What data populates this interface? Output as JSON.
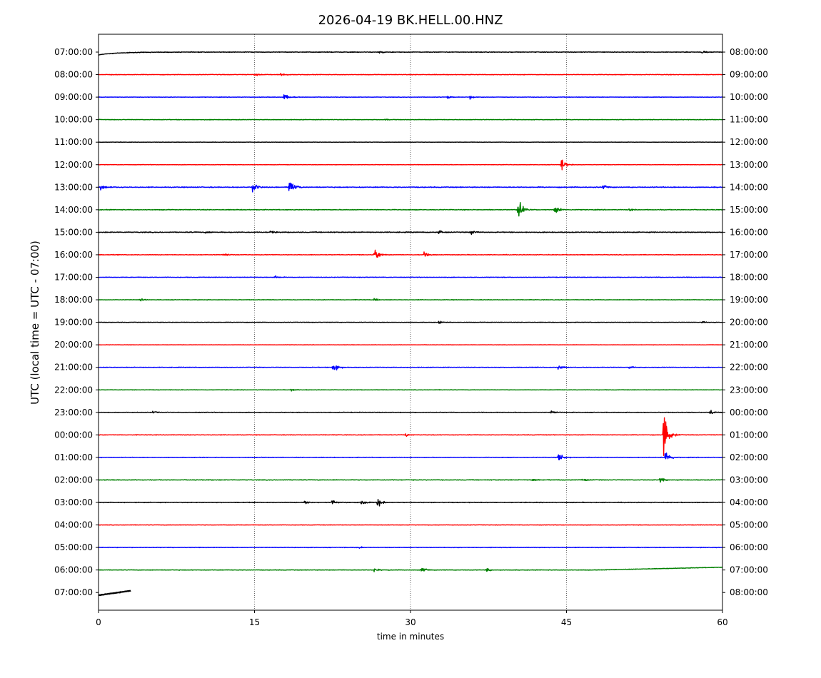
{
  "chart_data": {
    "type": "line",
    "title": "2026-04-19 BK.HELL.00.HNZ",
    "xlabel": "time in minutes",
    "ylabel": "UTC (local time = UTC - 07:00)",
    "xlim": [
      0,
      60
    ],
    "x_ticks": [
      0,
      15,
      30,
      45,
      60
    ],
    "x_tick_labels": [
      "0",
      "15",
      "30",
      "45",
      "60"
    ],
    "grid": "vertical dotted at 15, 30, 45",
    "trace_colors": [
      "#000000",
      "#ff0000",
      "#0000ff",
      "#008000"
    ],
    "left_tick_labels": [
      "07:00:00",
      "08:00:00",
      "09:00:00",
      "10:00:00",
      "11:00:00",
      "12:00:00",
      "13:00:00",
      "14:00:00",
      "15:00:00",
      "16:00:00",
      "17:00:00",
      "18:00:00",
      "19:00:00",
      "20:00:00",
      "21:00:00",
      "22:00:00",
      "23:00:00",
      "00:00:00",
      "01:00:00",
      "02:00:00",
      "03:00:00",
      "04:00:00",
      "05:00:00",
      "06:00:00",
      "07:00:00"
    ],
    "right_tick_labels": [
      "08:00:00",
      "09:00:00",
      "10:00:00",
      "11:00:00",
      "12:00:00",
      "13:00:00",
      "14:00:00",
      "15:00:00",
      "16:00:00",
      "17:00:00",
      "18:00:00",
      "19:00:00",
      "20:00:00",
      "21:00:00",
      "22:00:00",
      "23:00:00",
      "00:00:00",
      "01:00:00",
      "02:00:00",
      "03:00:00",
      "04:00:00",
      "05:00:00",
      "06:00:00",
      "07:00:00",
      "08:00:00"
    ],
    "series": [
      {
        "hour": "07:00:00",
        "end_minute": 60,
        "drift": "start",
        "noise": 0.35,
        "events": [
          {
            "t": 27,
            "amp": 0.2
          },
          {
            "t": 58,
            "amp": 0.2
          }
        ]
      },
      {
        "hour": "08:00:00",
        "end_minute": 60,
        "noise": 0.3,
        "events": [
          {
            "t": 15,
            "amp": 0.3
          },
          {
            "t": 17.5,
            "amp": 0.3
          }
        ]
      },
      {
        "hour": "09:00:00",
        "end_minute": 60,
        "noise": 0.25,
        "events": [
          {
            "t": 17.8,
            "amp": 0.55
          },
          {
            "t": 33.5,
            "amp": 0.3
          },
          {
            "t": 35.7,
            "amp": 0.3
          }
        ]
      },
      {
        "hour": "10:00:00",
        "end_minute": 60,
        "noise": 0.3,
        "events": [
          {
            "t": 27.5,
            "amp": 0.2
          }
        ]
      },
      {
        "hour": "11:00:00",
        "end_minute": 60,
        "noise": 0.2,
        "events": []
      },
      {
        "hour": "12:00:00",
        "end_minute": 60,
        "noise": 0.25,
        "events": [
          {
            "t": 44.5,
            "amp": 0.9
          }
        ]
      },
      {
        "hour": "13:00:00",
        "end_minute": 60,
        "noise": 0.45,
        "events": [
          {
            "t": 0.2,
            "amp": 0.45
          },
          {
            "t": 14.8,
            "amp": 0.75
          },
          {
            "t": 18.3,
            "amp": 1.6
          },
          {
            "t": 48.5,
            "amp": 0.3
          }
        ]
      },
      {
        "hour": "14:00:00",
        "end_minute": 60,
        "noise": 0.4,
        "events": [
          {
            "t": 40.3,
            "amp": 1.9
          },
          {
            "t": 43.8,
            "amp": 0.7
          },
          {
            "t": 51,
            "amp": 0.25
          }
        ]
      },
      {
        "hour": "15:00:00",
        "end_minute": 60,
        "noise": 0.45,
        "events": [
          {
            "t": 10.3,
            "amp": 0.3
          },
          {
            "t": 16.5,
            "amp": 0.3
          },
          {
            "t": 32.7,
            "amp": 0.35
          },
          {
            "t": 35.8,
            "amp": 0.35
          }
        ]
      },
      {
        "hour": "16:00:00",
        "end_minute": 60,
        "noise": 0.35,
        "events": [
          {
            "t": 12,
            "amp": 0.35
          },
          {
            "t": 26.5,
            "amp": 0.9
          },
          {
            "t": 31.3,
            "amp": 0.4
          }
        ]
      },
      {
        "hour": "17:00:00",
        "end_minute": 60,
        "noise": 0.3,
        "events": [
          {
            "t": 16.9,
            "amp": 0.25
          }
        ]
      },
      {
        "hour": "18:00:00",
        "end_minute": 60,
        "noise": 0.3,
        "events": [
          {
            "t": 4,
            "amp": 0.2
          },
          {
            "t": 26.5,
            "amp": 0.2
          }
        ]
      },
      {
        "hour": "19:00:00",
        "end_minute": 60,
        "noise": 0.25,
        "events": [
          {
            "t": 32.7,
            "amp": 0.2
          },
          {
            "t": 58,
            "amp": 0.15
          }
        ]
      },
      {
        "hour": "20:00:00",
        "end_minute": 60,
        "noise": 0.2,
        "events": []
      },
      {
        "hour": "21:00:00",
        "end_minute": 60,
        "noise": 0.3,
        "events": [
          {
            "t": 22.5,
            "amp": 1.1
          },
          {
            "t": 44.2,
            "amp": 0.35
          },
          {
            "t": 51,
            "amp": 0.2
          }
        ]
      },
      {
        "hour": "22:00:00",
        "end_minute": 60,
        "noise": 0.25,
        "events": [
          {
            "t": 18.5,
            "amp": 0.2
          }
        ]
      },
      {
        "hour": "23:00:00",
        "end_minute": 60,
        "noise": 0.3,
        "events": [
          {
            "t": 5.2,
            "amp": 0.2
          },
          {
            "t": 43.5,
            "amp": 0.25
          },
          {
            "t": 58.8,
            "amp": 0.45
          }
        ]
      },
      {
        "hour": "00:00:00",
        "end_minute": 60,
        "noise": 0.3,
        "events": [
          {
            "t": 29.5,
            "amp": 0.25
          },
          {
            "t": 54.3,
            "amp": 3.2
          }
        ]
      },
      {
        "hour": "01:00:00",
        "end_minute": 60,
        "noise": 0.3,
        "events": [
          {
            "t": 44.2,
            "amp": 1.0
          },
          {
            "t": 54.5,
            "amp": 1.1
          }
        ]
      },
      {
        "hour": "02:00:00",
        "end_minute": 60,
        "noise": 0.35,
        "events": [
          {
            "t": 41.7,
            "amp": 0.25
          },
          {
            "t": 46.5,
            "amp": 0.25
          },
          {
            "t": 54,
            "amp": 0.45
          }
        ]
      },
      {
        "hour": "03:00:00",
        "end_minute": 60,
        "noise": 0.35,
        "events": [
          {
            "t": 19.8,
            "amp": 0.4
          },
          {
            "t": 22.4,
            "amp": 0.5
          },
          {
            "t": 25.2,
            "amp": 0.5
          },
          {
            "t": 26.8,
            "amp": 0.8
          }
        ]
      },
      {
        "hour": "04:00:00",
        "end_minute": 60,
        "noise": 0.25,
        "events": []
      },
      {
        "hour": "05:00:00",
        "end_minute": 60,
        "noise": 0.3,
        "events": [
          {
            "t": 25,
            "amp": 0.2
          }
        ]
      },
      {
        "hour": "06:00:00",
        "end_minute": 60,
        "drift": "end",
        "noise": 0.3,
        "events": [
          {
            "t": 26.5,
            "amp": 0.35
          },
          {
            "t": 31,
            "amp": 0.4
          },
          {
            "t": 37.3,
            "amp": 0.4
          }
        ]
      },
      {
        "hour": "07:00:00",
        "end_minute": 3.1,
        "drift": "rise",
        "noise": 0.3,
        "events": []
      }
    ]
  }
}
